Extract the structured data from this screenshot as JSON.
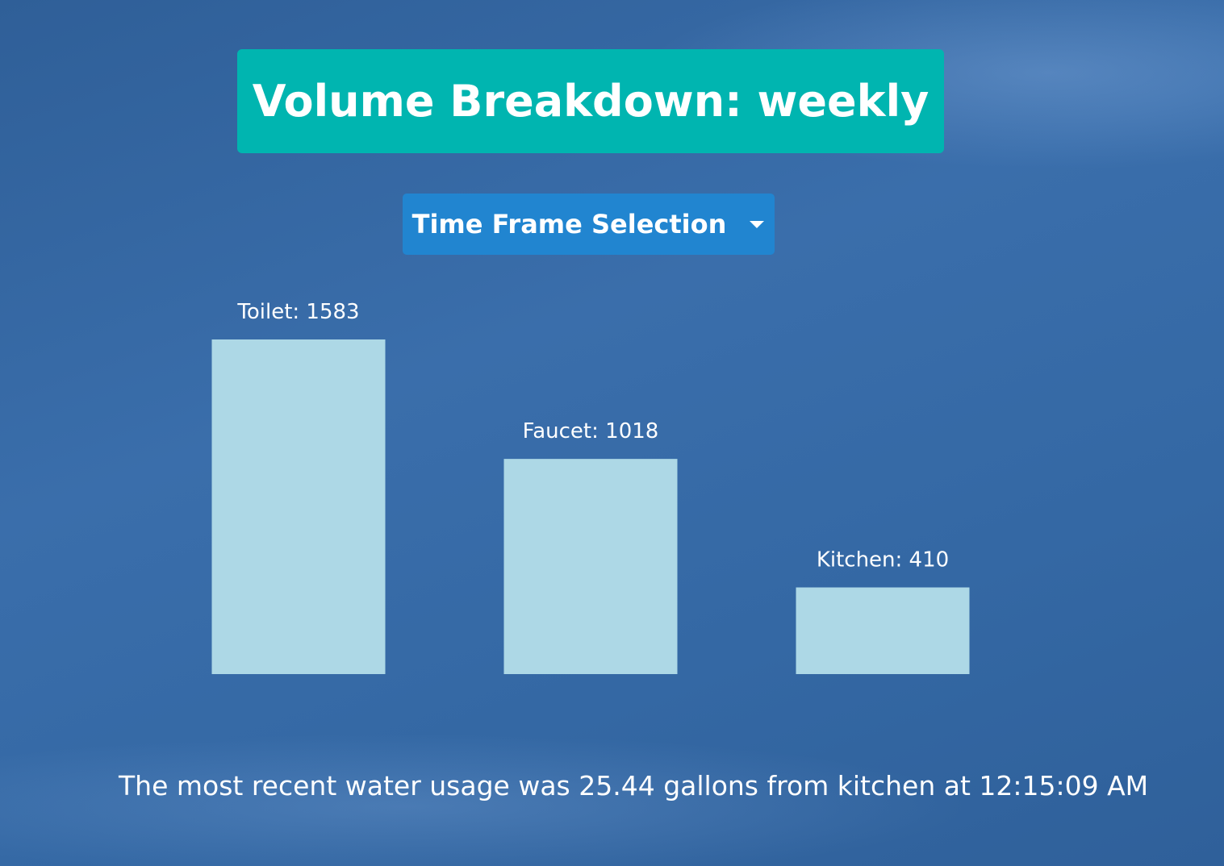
{
  "header": {
    "title": "Volume Breakdown: weekly"
  },
  "dropdown": {
    "label": "Time Frame Selection"
  },
  "chart_data": {
    "type": "bar",
    "values": [
      1583,
      1018,
      410
    ],
    "value_labels": [
      "Toilet: 1583",
      "Faucet: 1018",
      "Kitchen: 410"
    ],
    "color": "#add8e6"
  },
  "footer": {
    "text": "The most recent water usage was 25.44 gallons from kitchen at 12:15:09 AM"
  }
}
